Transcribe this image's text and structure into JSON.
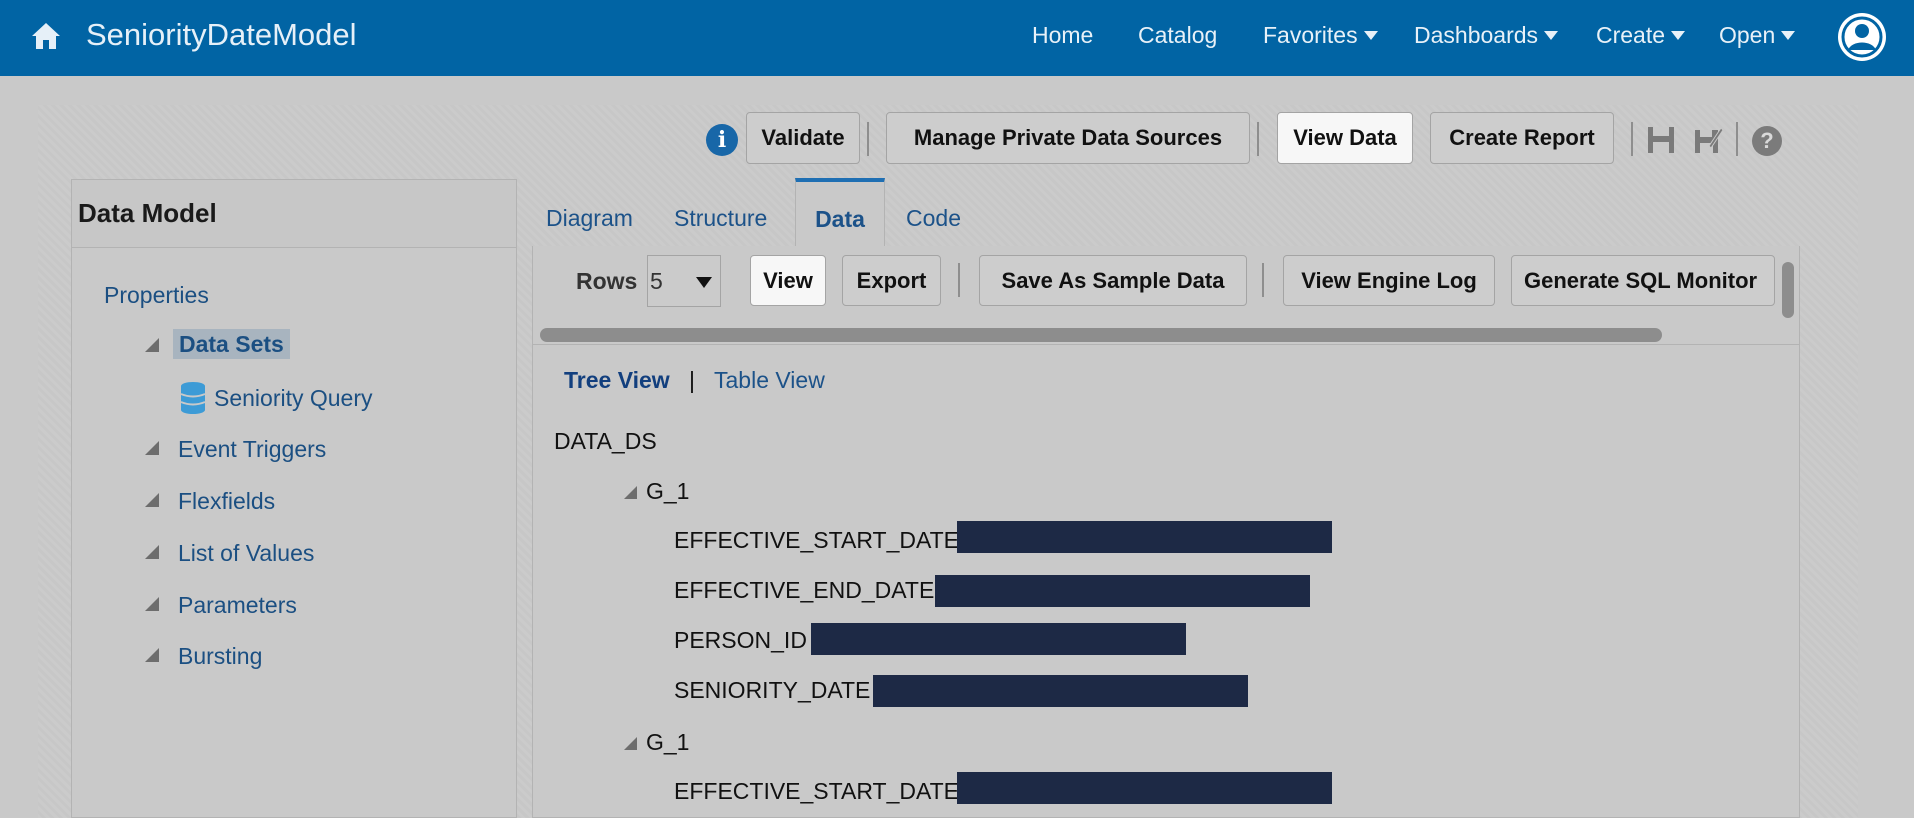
{
  "header": {
    "app_title": "SeniorityDateModel",
    "nav": [
      {
        "label": "Home",
        "has_menu": false
      },
      {
        "label": "Catalog",
        "has_menu": false
      },
      {
        "label": "Favorites",
        "has_menu": true
      },
      {
        "label": "Dashboards",
        "has_menu": true
      },
      {
        "label": "Create",
        "has_menu": true
      },
      {
        "label": "Open",
        "has_menu": true
      }
    ],
    "icons": {
      "home": "home-icon",
      "user": "user-avatar-icon"
    }
  },
  "toolbar": {
    "info_symbol": "i",
    "validate": "Validate",
    "manage_sources": "Manage Private Data Sources",
    "view_data": "View Data",
    "create_report": "Create Report",
    "help_symbol": "?",
    "icons": [
      "info-icon",
      "save-icon",
      "save-as-icon",
      "help-icon"
    ]
  },
  "left_panel": {
    "title": "Data Model",
    "properties": "Properties",
    "data_sets": "Data Sets",
    "seniority_query": "Seniority Query",
    "event_triggers": "Event Triggers",
    "flexfields": "Flexfields",
    "list_of_values": "List of Values",
    "parameters": "Parameters",
    "bursting": "Bursting"
  },
  "tabs": {
    "diagram": "Diagram",
    "structure": "Structure",
    "data": "Data",
    "code": "Code",
    "active": "Data"
  },
  "data_toolbar": {
    "rows_label": "Rows",
    "rows_value": "5",
    "view": "View",
    "export": "Export",
    "save_sample": "Save As Sample Data",
    "engine_log": "View Engine Log",
    "sql_monitor": "Generate SQL Monitor"
  },
  "view_toggle": {
    "tree": "Tree View",
    "separator": "|",
    "table": "Table View"
  },
  "tree": {
    "root": "DATA_DS",
    "group1": "G_1",
    "g1_f1": "EFFECTIVE_START_DATE",
    "g1_f2": "EFFECTIVE_END_DATE",
    "g1_f3": "PERSON_ID",
    "g1_f4": "SENIORITY_DATE",
    "group2": "G_1",
    "g2_f1": "EFFECTIVE_START_DATE"
  },
  "colors": {
    "header_bg": "#0164a4",
    "link": "#1c5289",
    "redaction": "#1d2945",
    "background": "#c9c9c9"
  }
}
